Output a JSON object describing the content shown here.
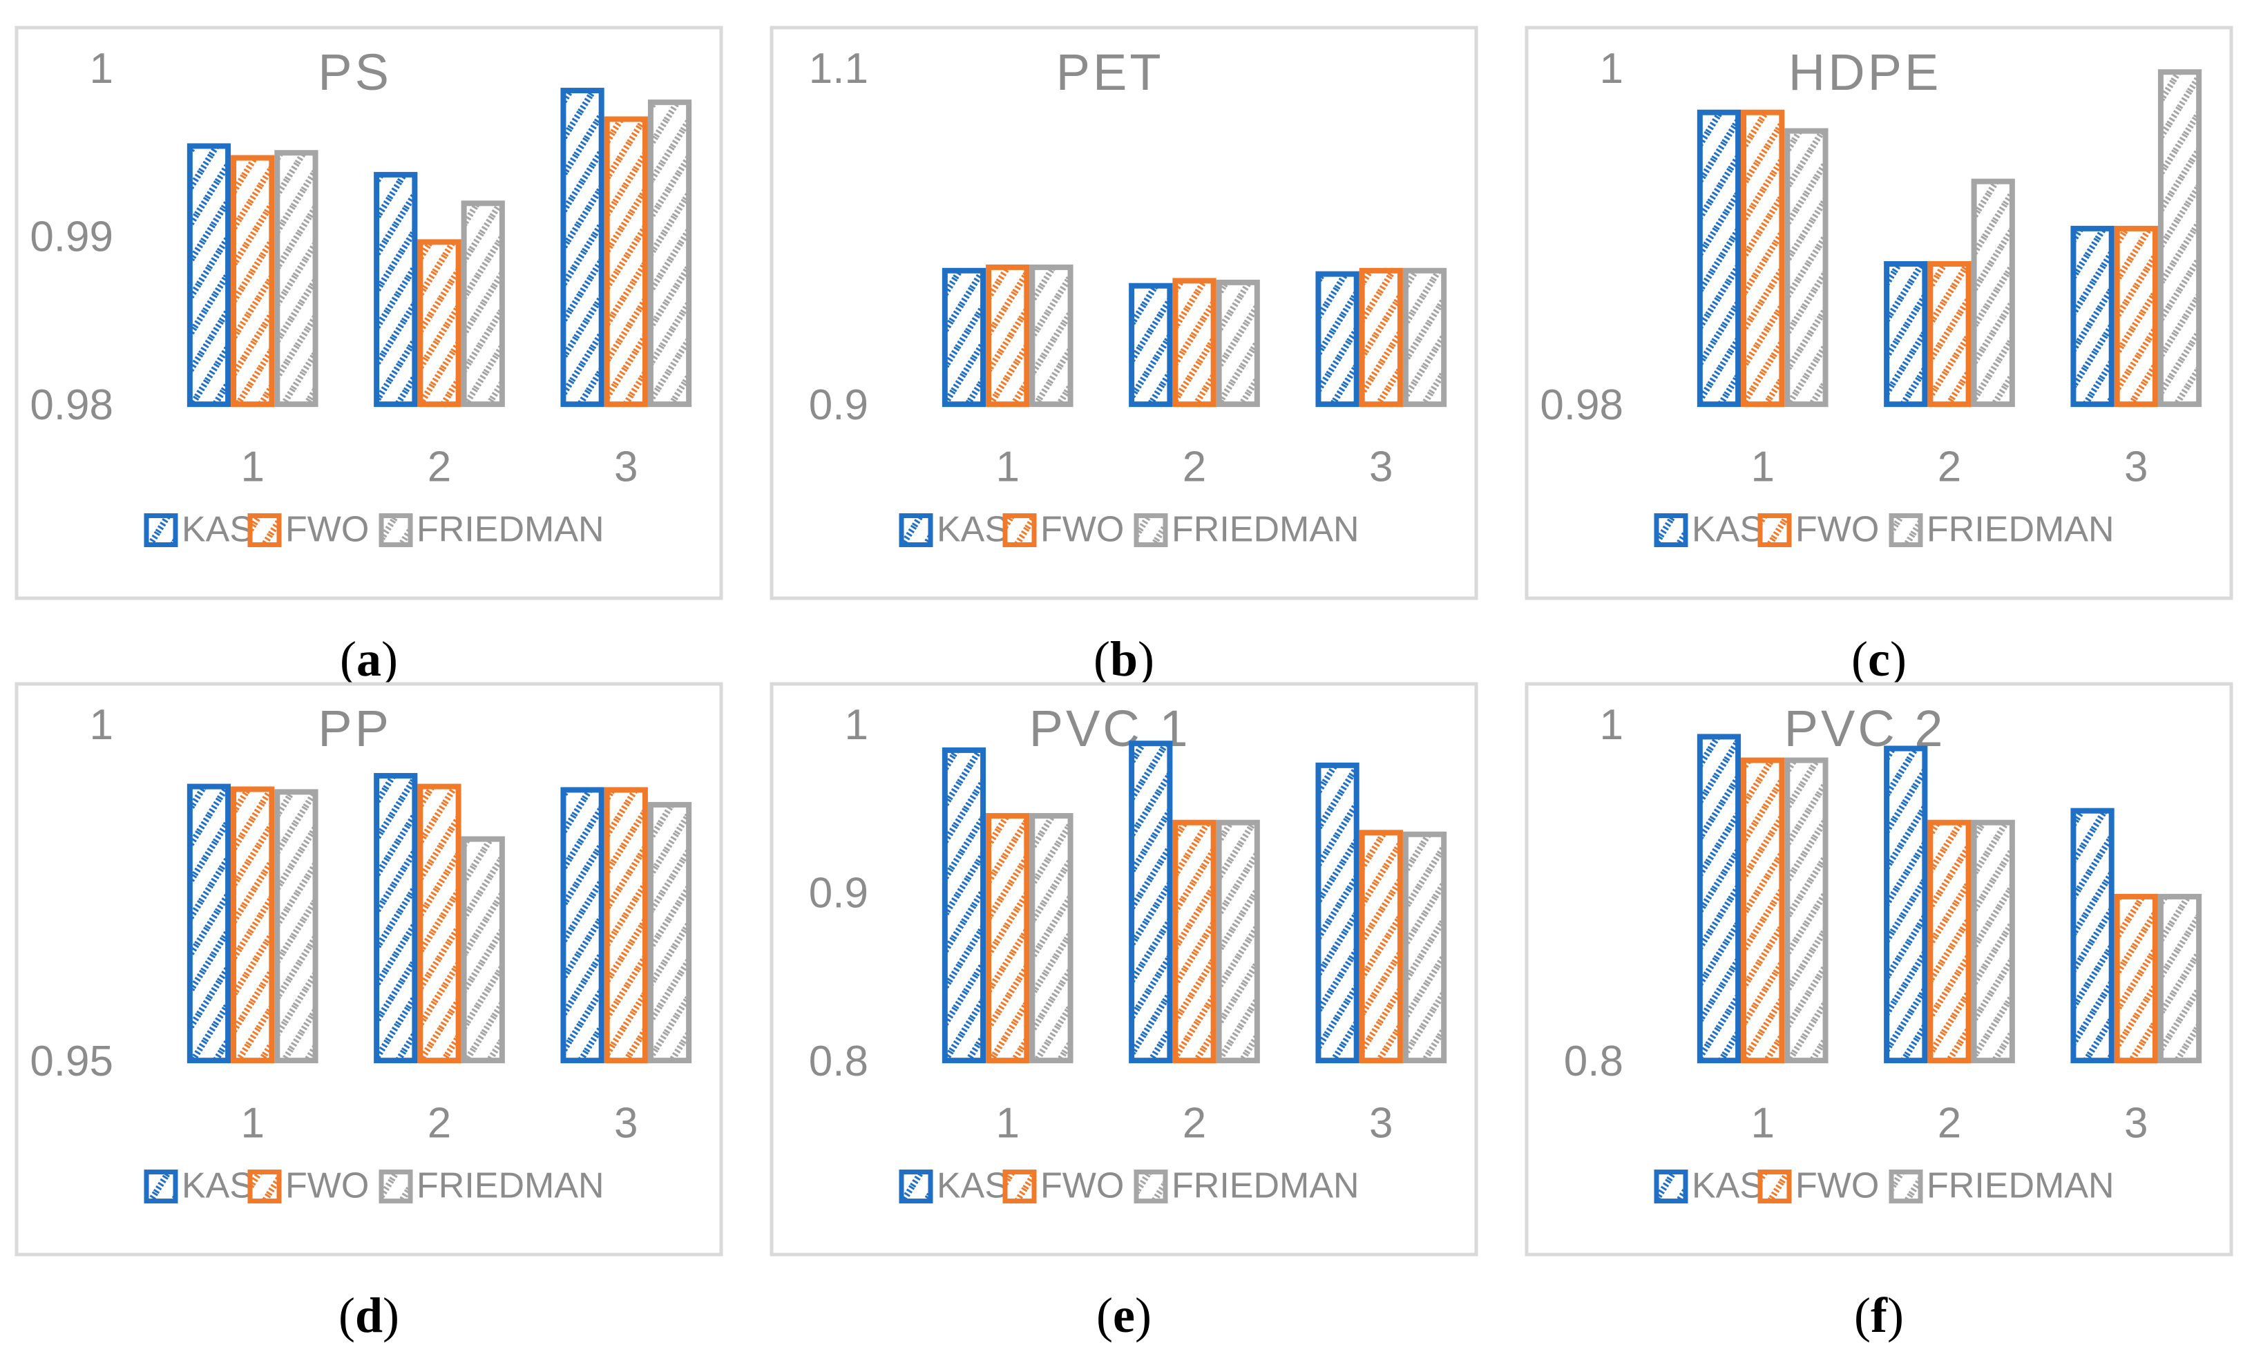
{
  "colors": {
    "kas": "#1f6fc5",
    "fwo": "#f07a2a",
    "friedman": "#a5a5a5",
    "text": "#8c8c8c",
    "frame": "#d9d9d9"
  },
  "legend": [
    "KAS",
    "FWO",
    "FRIEDMAN"
  ],
  "chart_data": [
    {
      "type": "bar",
      "panel": "(a)",
      "title": "PS",
      "categories": [
        "1",
        "2",
        "3"
      ],
      "yticks": [
        "0.98",
        "0.99",
        "1"
      ],
      "ylim": [
        0.98,
        1.0
      ],
      "series": [
        {
          "name": "KAS",
          "values": [
            0.9955,
            0.9938,
            0.9988
          ]
        },
        {
          "name": "FWO",
          "values": [
            0.9948,
            0.9898,
            0.9971
          ]
        },
        {
          "name": "FRIEDMAN",
          "values": [
            0.9951,
            0.9921,
            0.9981
          ]
        }
      ]
    },
    {
      "type": "bar",
      "panel": "(b)",
      "title": "PET",
      "categories": [
        "1",
        "2",
        "3"
      ],
      "yticks": [
        "0.9",
        "1.1"
      ],
      "ylim": [
        0.9,
        1.1
      ],
      "series": [
        {
          "name": "KAS",
          "values": [
            0.981,
            0.972,
            0.979
          ]
        },
        {
          "name": "FWO",
          "values": [
            0.983,
            0.975,
            0.981
          ]
        },
        {
          "name": "FRIEDMAN",
          "values": [
            0.983,
            0.974,
            0.981
          ]
        }
      ]
    },
    {
      "type": "bar",
      "panel": "(c)",
      "title": "HDPE",
      "categories": [
        "1",
        "2",
        "3"
      ],
      "yticks": [
        "0.98",
        "1"
      ],
      "ylim": [
        0.98,
        1.0
      ],
      "series": [
        {
          "name": "KAS",
          "values": [
            0.9975,
            0.9885,
            0.9906
          ]
        },
        {
          "name": "FWO",
          "values": [
            0.9975,
            0.9885,
            0.9906
          ]
        },
        {
          "name": "FRIEDMAN",
          "values": [
            0.9964,
            0.9934,
            0.9999
          ]
        }
      ]
    },
    {
      "type": "bar",
      "panel": "(d)",
      "title": "PP",
      "categories": [
        "1",
        "2",
        "3"
      ],
      "yticks": [
        "0.95",
        "1"
      ],
      "ylim": [
        0.95,
        1.0
      ],
      "series": [
        {
          "name": "KAS",
          "values": [
            0.9911,
            0.9927,
            0.9906
          ]
        },
        {
          "name": "FWO",
          "values": [
            0.9907,
            0.9911,
            0.9906
          ]
        },
        {
          "name": "FRIEDMAN",
          "values": [
            0.9903,
            0.9833,
            0.9884
          ]
        }
      ]
    },
    {
      "type": "bar",
      "panel": "(e)",
      "title": "PVC 1",
      "categories": [
        "1",
        "2",
        "3"
      ],
      "yticks": [
        "0.8",
        "0.9",
        "1"
      ],
      "ylim": [
        0.8,
        1.0
      ],
      "series": [
        {
          "name": "KAS",
          "values": [
            0.986,
            0.99,
            0.977
          ]
        },
        {
          "name": "FWO",
          "values": [
            0.947,
            0.943,
            0.937
          ]
        },
        {
          "name": "FRIEDMAN",
          "values": [
            0.947,
            0.943,
            0.936
          ]
        }
      ]
    },
    {
      "type": "bar",
      "panel": "(f)",
      "title": "PVC 2",
      "categories": [
        "1",
        "2",
        "3"
      ],
      "yticks": [
        "0.8",
        "1"
      ],
      "ylim": [
        0.8,
        1.0
      ],
      "series": [
        {
          "name": "KAS",
          "values": [
            0.994,
            0.987,
            0.95
          ]
        },
        {
          "name": "FWO",
          "values": [
            0.98,
            0.943,
            0.899
          ]
        },
        {
          "name": "FRIEDMAN",
          "values": [
            0.98,
            0.943,
            0.899
          ]
        }
      ]
    }
  ]
}
